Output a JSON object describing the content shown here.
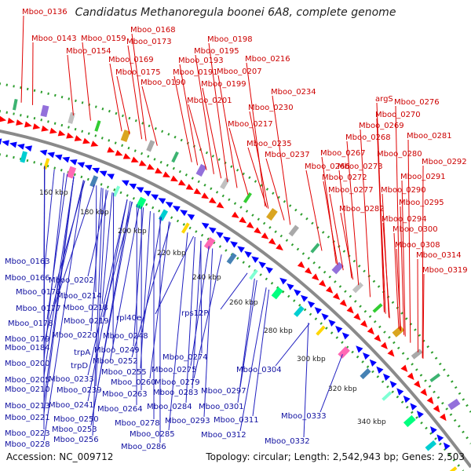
{
  "title": "Candidatus Methanoregula boonei 6A8, complete genome",
  "accession": "Accession: NC_009712",
  "summary": "Topology: circular; Length: 2,542,943 bp; Genes: 2,503",
  "colors": {
    "forward": "#ff0000",
    "reverse": "#0000ff",
    "backbone": "#888888",
    "dots": "#2e9e2e",
    "red_label": "#cc0000",
    "blue_label": "#1010a0"
  },
  "kbp_labels": [
    "160 kbp",
    "180 kbp",
    "200 kbp",
    "220 kbp",
    "240 kbp",
    "260 kbp",
    "280 kbp",
    "300 kbp",
    "320 kbp",
    "340 kbp"
  ],
  "red_labels": [
    "Mboo_0136",
    "Mboo_0143",
    "Mboo_0154",
    "Mboo_0159",
    "Mboo_0168",
    "Mboo_0173",
    "Mboo_0169",
    "Mboo_0175",
    "Mboo_0190",
    "Mboo_0198",
    "Mboo_0195",
    "Mboo_0193",
    "Mboo_0191",
    "Mboo_0216",
    "Mboo_0207",
    "Mboo_0199",
    "Mboo_0201",
    "Mboo_0234",
    "Mboo_0230",
    "Mboo_0217",
    "argS",
    "Mboo_0276",
    "Mboo_0270",
    "Mboo_0269",
    "Mboo_0268",
    "Mboo_0281",
    "Mboo_0235",
    "Mboo_0237",
    "Mboo_0266",
    "Mboo_0267",
    "Mboo_0273",
    "Mboo_0280",
    "Mboo_0292",
    "Mboo_0272",
    "Mboo_0291",
    "Mboo_0277",
    "Mboo_0290",
    "Mboo_0282",
    "Mboo_0295",
    "Mboo_0294",
    "Mboo_0300",
    "Mboo_0308",
    "Mboo_0314",
    "Mboo_0319"
  ],
  "blue_labels": [
    "Mboo_0163",
    "Mboo_0166",
    "Mboo_0202",
    "Mboo_0176",
    "Mboo_0177",
    "Mboo_0214",
    "Mboo_0218",
    "Mboo_0178",
    "Mboo_0219",
    "rpl40e",
    "Mboo_0179",
    "Mboo_0220",
    "Mboo_0248",
    "rps12P",
    "Mboo_0184",
    "trpA",
    "Mboo_0249",
    "Mboo_0200",
    "trpD",
    "Mboo_0252",
    "Mboo_0274",
    "Mboo_0255",
    "Mboo_0275",
    "Mboo_0205",
    "Mboo_0233",
    "Mboo_0210",
    "Mboo_0239",
    "Mboo_0260",
    "Mboo_0279",
    "Mboo_0304",
    "Mboo_0263",
    "Mboo_0283",
    "Mboo_0297",
    "Mboo_0213",
    "Mboo_0241",
    "Mboo_0264",
    "Mboo_0284",
    "Mboo_0301",
    "Mboo_0221",
    "Mboo_0250",
    "Mboo_0278",
    "Mboo_0293",
    "Mboo_0311",
    "Mboo_0333",
    "Mboo_0253",
    "Mboo_0223",
    "Mboo_0256",
    "Mboo_0285",
    "Mboo_0312",
    "Mboo_0228",
    "Mboo_0286",
    "Mboo_0332"
  ]
}
